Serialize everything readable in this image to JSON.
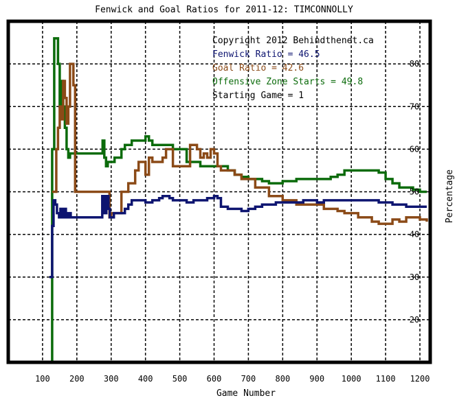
{
  "colors": {
    "fenwick": "#0d1470",
    "goal": "#8b4a17",
    "ozone": "#0b6b0b",
    "text": "#000000",
    "grid": "#000000",
    "background": "#ffffff"
  },
  "chart_data": {
    "type": "line",
    "title": "Fenwick and Goal Ratios for 2011-12: TIMCONNOLLY",
    "xlabel": "Game Number",
    "ylabel": "Percentage",
    "xlim": [
      0,
      1230
    ],
    "ylim": [
      10,
      90
    ],
    "x_ticks": [
      100,
      200,
      300,
      400,
      500,
      600,
      700,
      800,
      900,
      1000,
      1100,
      1200
    ],
    "y_ticks": [
      20,
      30,
      40,
      50,
      60,
      70,
      80
    ],
    "grid": true,
    "annotations": [
      "Copyright 2012 Behindthenet.ca",
      "Fenwick Ratio = 46.5",
      "Goal Ratio = 42.6",
      "Offensive Zone Starts = 49.8",
      "Starting Game = 1"
    ],
    "series": [
      {
        "name": "Fenwick Ratio",
        "x": [
          120,
          128,
          132,
          137,
          142,
          148,
          152,
          156,
          162,
          168,
          175,
          182,
          190,
          200,
          215,
          230,
          250,
          268,
          274,
          280,
          286,
          292,
          296,
          300,
          308,
          316,
          324,
          332,
          340,
          350,
          360,
          370,
          380,
          390,
          400,
          410,
          420,
          430,
          440,
          450,
          460,
          470,
          480,
          490,
          500,
          520,
          540,
          560,
          580,
          600,
          610,
          620,
          640,
          660,
          680,
          700,
          720,
          740,
          760,
          780,
          800,
          820,
          840,
          860,
          880,
          900,
          920,
          940,
          960,
          980,
          1000,
          1020,
          1040,
          1060,
          1080,
          1100,
          1120,
          1140,
          1160,
          1180,
          1200,
          1220
        ],
        "values": [
          30,
          42,
          48,
          47,
          45,
          44,
          46,
          44,
          46,
          44,
          45,
          44,
          44,
          44,
          44,
          44,
          44,
          44,
          49,
          45,
          49,
          46,
          44,
          44,
          45,
          45,
          45,
          45,
          46,
          47,
          48,
          48,
          48,
          48,
          47.5,
          47.5,
          48,
          48,
          48.5,
          49,
          49,
          48.5,
          48,
          48,
          48,
          47.5,
          48,
          48,
          48.5,
          49,
          48.5,
          46.5,
          46,
          46,
          45.5,
          46,
          46.5,
          47,
          47,
          47.5,
          47.5,
          47.5,
          47.5,
          48,
          48,
          47.5,
          48,
          48,
          48,
          48,
          48,
          48,
          48,
          48,
          47.5,
          47.5,
          47,
          47,
          46.5,
          46.5,
          46.5,
          46.5
        ]
      },
      {
        "name": "Goal Ratio",
        "x": [
          128,
          135,
          140,
          145,
          150,
          155,
          160,
          165,
          170,
          175,
          180,
          185,
          190,
          195,
          200,
          210,
          220,
          240,
          260,
          280,
          290,
          295,
          300,
          310,
          320,
          330,
          340,
          350,
          360,
          370,
          380,
          390,
          400,
          410,
          420,
          430,
          440,
          450,
          460,
          480,
          500,
          510,
          520,
          530,
          540,
          550,
          560,
          570,
          580,
          590,
          600,
          610,
          620,
          640,
          660,
          680,
          700,
          720,
          740,
          760,
          780,
          800,
          820,
          840,
          860,
          880,
          900,
          920,
          940,
          960,
          980,
          1000,
          1020,
          1040,
          1060,
          1080,
          1100,
          1120,
          1140,
          1160,
          1180,
          1200,
          1220
        ],
        "values": [
          50,
          50,
          60,
          65,
          70,
          67,
          76,
          72,
          66,
          70,
          80,
          80,
          75,
          50,
          50,
          50,
          50,
          50,
          50,
          50,
          50,
          44,
          45,
          45,
          45,
          50,
          50,
          52,
          52,
          55,
          57,
          57,
          54,
          58,
          57,
          57,
          57,
          58,
          60,
          56,
          56,
          56,
          56,
          61,
          61,
          60,
          58,
          59,
          58,
          60,
          59,
          56,
          55,
          55,
          54,
          53,
          53,
          51,
          51,
          49,
          49,
          48,
          48,
          47,
          47,
          47,
          47,
          46,
          46,
          45.5,
          45,
          45,
          44,
          44,
          43,
          42.5,
          42.5,
          43.5,
          43,
          44,
          44,
          43.5,
          43
        ]
      },
      {
        "name": "Offensive Zone Starts",
        "x": [
          122,
          128,
          134,
          140,
          145,
          150,
          155,
          160,
          165,
          170,
          175,
          180,
          200,
          220,
          240,
          260,
          270,
          275,
          280,
          285,
          290,
          300,
          310,
          320,
          330,
          340,
          350,
          360,
          370,
          380,
          390,
          400,
          410,
          420,
          430,
          440,
          450,
          460,
          470,
          480,
          500,
          520,
          540,
          560,
          580,
          600,
          620,
          640,
          660,
          680,
          700,
          720,
          740,
          760,
          780,
          800,
          820,
          840,
          860,
          880,
          900,
          920,
          940,
          960,
          980,
          1000,
          1020,
          1040,
          1060,
          1080,
          1100,
          1120,
          1140,
          1160,
          1180,
          1200,
          1220
        ],
        "values": [
          10,
          60,
          86,
          86,
          80,
          70,
          76,
          70,
          65,
          60,
          58,
          59,
          59,
          59,
          59,
          59,
          59,
          62,
          58,
          56,
          57,
          57,
          58,
          58,
          60,
          61,
          61,
          62,
          62,
          62,
          62,
          63,
          62,
          61,
          61,
          61,
          61,
          61,
          61,
          60,
          60,
          57,
          57,
          56,
          56,
          56,
          56,
          55,
          54,
          53.5,
          53,
          53,
          52.5,
          52,
          52,
          52.5,
          52.5,
          53,
          53,
          53,
          53,
          53,
          53.5,
          54,
          55,
          55,
          55,
          55,
          55,
          54.5,
          53,
          52,
          51,
          51,
          50.5,
          50,
          50
        ]
      }
    ]
  }
}
